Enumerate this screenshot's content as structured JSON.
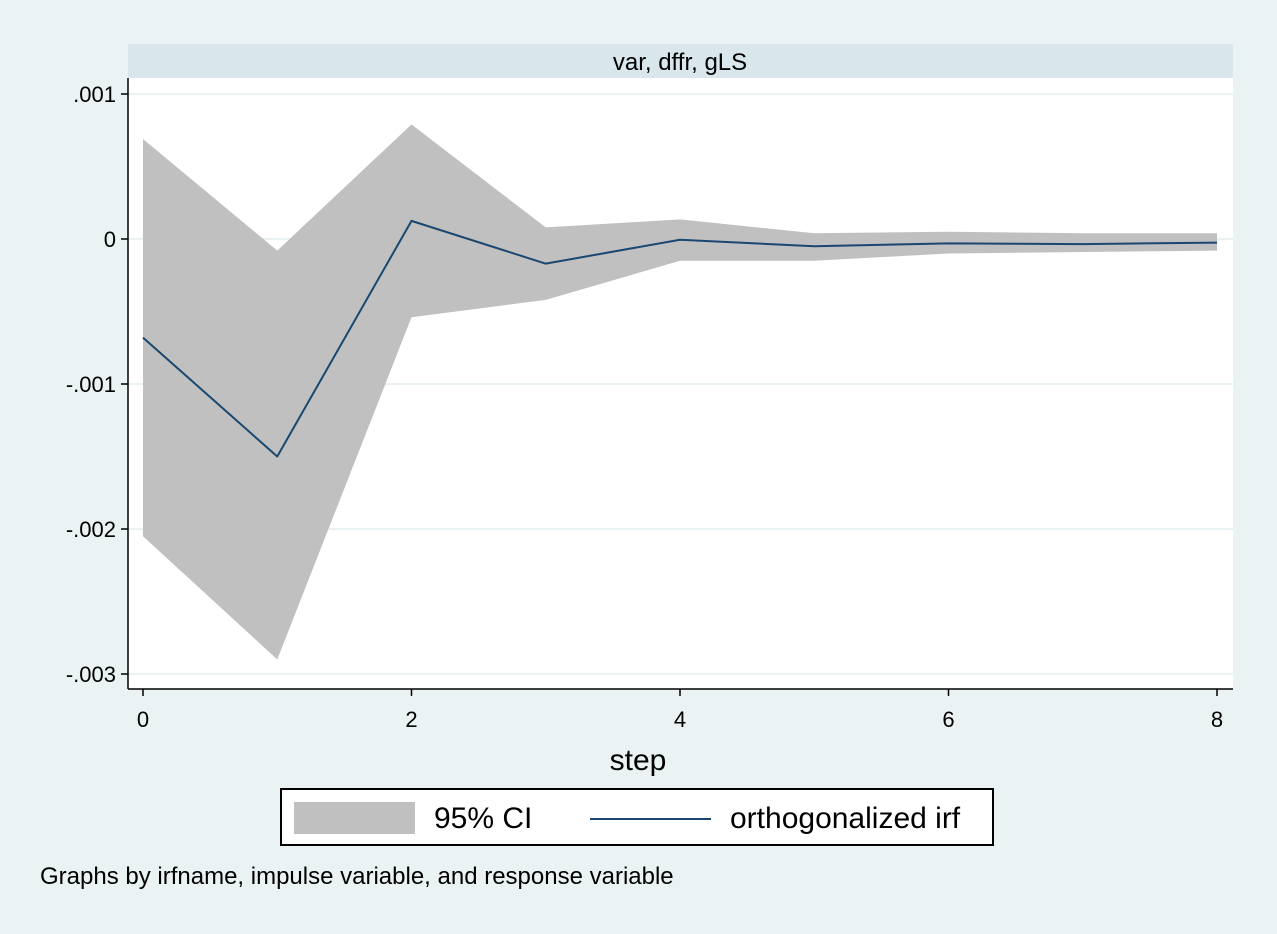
{
  "chart_data": {
    "type": "line",
    "panel_title": "var, dffr, gLS",
    "xlabel": "step",
    "ylabel": "",
    "xlim": [
      0,
      8
    ],
    "ylim": [
      -0.003,
      0.001
    ],
    "x_ticks": [
      {
        "value": 0,
        "label": "0"
      },
      {
        "value": 2,
        "label": "2"
      },
      {
        "value": 4,
        "label": "4"
      },
      {
        "value": 6,
        "label": "6"
      },
      {
        "value": 8,
        "label": "8"
      }
    ],
    "y_ticks": [
      {
        "value": 0.001,
        "label": ".001"
      },
      {
        "value": 0,
        "label": "0"
      },
      {
        "value": -0.001,
        "label": "-.001"
      },
      {
        "value": -0.002,
        "label": "-.002"
      },
      {
        "value": -0.003,
        "label": "-.003"
      }
    ],
    "grid": true,
    "x": [
      0,
      1,
      2,
      3,
      4,
      5,
      6,
      7,
      8
    ],
    "series": [
      {
        "name": "orthogonalized irf",
        "type": "line",
        "color": "#1a476f",
        "values": [
          -0.00068,
          -0.0015,
          0.000125,
          -0.00017,
          -5e-06,
          -5e-05,
          -3e-05,
          -3.5e-05,
          -2.5e-05
        ]
      },
      {
        "name": "95% CI",
        "type": "band",
        "color": "#c0c0c0",
        "lower": [
          -0.00205,
          -0.0029,
          -0.00054,
          -0.00042,
          -0.00015,
          -0.00015,
          -0.0001,
          -9e-05,
          -8e-05
        ],
        "upper": [
          0.00069,
          -8e-05,
          0.00079,
          8e-05,
          0.000135,
          4e-05,
          5e-05,
          4e-05,
          4e-05
        ]
      }
    ],
    "legend": {
      "position": "bottom",
      "entries": [
        "95% CI",
        "orthogonalized irf"
      ]
    },
    "note": "Graphs by irfname, impulse variable, and response variable"
  },
  "colors": {
    "background": "#eaf2f3",
    "panel_header": "#d9e6eb",
    "plot_area": "#ffffff",
    "grid": "#eaf2f3",
    "ci_band": "#c0c0c0",
    "irf_line": "#1a476f"
  }
}
